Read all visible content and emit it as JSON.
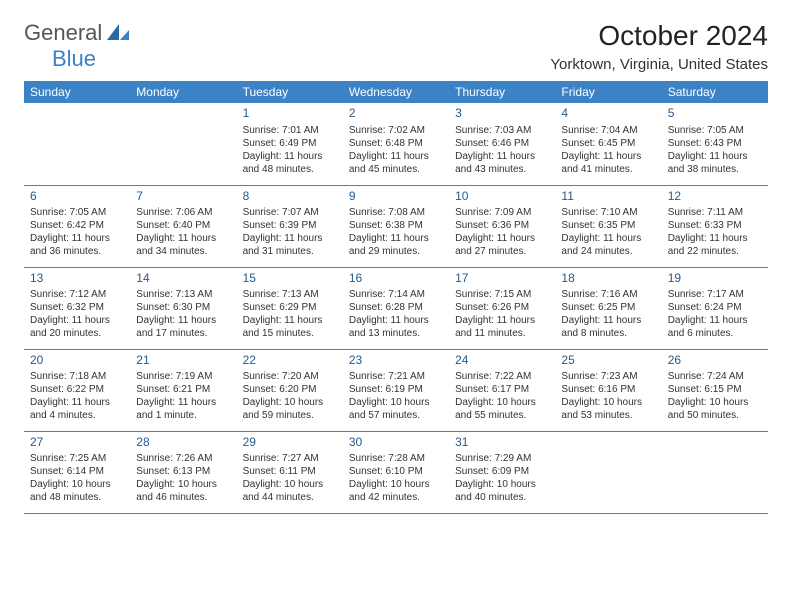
{
  "logo": {
    "line1": "General",
    "line2": "Blue"
  },
  "title": "October 2024",
  "location": "Yorktown, Virginia, United States",
  "colors": {
    "header_bg": "#3b82c7",
    "header_text": "#ffffff",
    "daynum": "#265a8a",
    "border": "#5a7ea3",
    "text": "#333333",
    "background": "#ffffff"
  },
  "typography": {
    "title_fontsize": 28,
    "location_fontsize": 15,
    "header_fontsize": 12,
    "daynum_fontsize": 12,
    "cell_fontsize": 10
  },
  "weekdays": [
    "Sunday",
    "Monday",
    "Tuesday",
    "Wednesday",
    "Thursday",
    "Friday",
    "Saturday"
  ],
  "weeks": [
    [
      null,
      null,
      {
        "n": "1",
        "sr": "Sunrise: 7:01 AM",
        "ss": "Sunset: 6:49 PM",
        "d1": "Daylight: 11 hours",
        "d2": "and 48 minutes."
      },
      {
        "n": "2",
        "sr": "Sunrise: 7:02 AM",
        "ss": "Sunset: 6:48 PM",
        "d1": "Daylight: 11 hours",
        "d2": "and 45 minutes."
      },
      {
        "n": "3",
        "sr": "Sunrise: 7:03 AM",
        "ss": "Sunset: 6:46 PM",
        "d1": "Daylight: 11 hours",
        "d2": "and 43 minutes."
      },
      {
        "n": "4",
        "sr": "Sunrise: 7:04 AM",
        "ss": "Sunset: 6:45 PM",
        "d1": "Daylight: 11 hours",
        "d2": "and 41 minutes."
      },
      {
        "n": "5",
        "sr": "Sunrise: 7:05 AM",
        "ss": "Sunset: 6:43 PM",
        "d1": "Daylight: 11 hours",
        "d2": "and 38 minutes."
      }
    ],
    [
      {
        "n": "6",
        "sr": "Sunrise: 7:05 AM",
        "ss": "Sunset: 6:42 PM",
        "d1": "Daylight: 11 hours",
        "d2": "and 36 minutes."
      },
      {
        "n": "7",
        "sr": "Sunrise: 7:06 AM",
        "ss": "Sunset: 6:40 PM",
        "d1": "Daylight: 11 hours",
        "d2": "and 34 minutes."
      },
      {
        "n": "8",
        "sr": "Sunrise: 7:07 AM",
        "ss": "Sunset: 6:39 PM",
        "d1": "Daylight: 11 hours",
        "d2": "and 31 minutes."
      },
      {
        "n": "9",
        "sr": "Sunrise: 7:08 AM",
        "ss": "Sunset: 6:38 PM",
        "d1": "Daylight: 11 hours",
        "d2": "and 29 minutes."
      },
      {
        "n": "10",
        "sr": "Sunrise: 7:09 AM",
        "ss": "Sunset: 6:36 PM",
        "d1": "Daylight: 11 hours",
        "d2": "and 27 minutes."
      },
      {
        "n": "11",
        "sr": "Sunrise: 7:10 AM",
        "ss": "Sunset: 6:35 PM",
        "d1": "Daylight: 11 hours",
        "d2": "and 24 minutes."
      },
      {
        "n": "12",
        "sr": "Sunrise: 7:11 AM",
        "ss": "Sunset: 6:33 PM",
        "d1": "Daylight: 11 hours",
        "d2": "and 22 minutes."
      }
    ],
    [
      {
        "n": "13",
        "sr": "Sunrise: 7:12 AM",
        "ss": "Sunset: 6:32 PM",
        "d1": "Daylight: 11 hours",
        "d2": "and 20 minutes."
      },
      {
        "n": "14",
        "sr": "Sunrise: 7:13 AM",
        "ss": "Sunset: 6:30 PM",
        "d1": "Daylight: 11 hours",
        "d2": "and 17 minutes."
      },
      {
        "n": "15",
        "sr": "Sunrise: 7:13 AM",
        "ss": "Sunset: 6:29 PM",
        "d1": "Daylight: 11 hours",
        "d2": "and 15 minutes."
      },
      {
        "n": "16",
        "sr": "Sunrise: 7:14 AM",
        "ss": "Sunset: 6:28 PM",
        "d1": "Daylight: 11 hours",
        "d2": "and 13 minutes."
      },
      {
        "n": "17",
        "sr": "Sunrise: 7:15 AM",
        "ss": "Sunset: 6:26 PM",
        "d1": "Daylight: 11 hours",
        "d2": "and 11 minutes."
      },
      {
        "n": "18",
        "sr": "Sunrise: 7:16 AM",
        "ss": "Sunset: 6:25 PM",
        "d1": "Daylight: 11 hours",
        "d2": "and 8 minutes."
      },
      {
        "n": "19",
        "sr": "Sunrise: 7:17 AM",
        "ss": "Sunset: 6:24 PM",
        "d1": "Daylight: 11 hours",
        "d2": "and 6 minutes."
      }
    ],
    [
      {
        "n": "20",
        "sr": "Sunrise: 7:18 AM",
        "ss": "Sunset: 6:22 PM",
        "d1": "Daylight: 11 hours",
        "d2": "and 4 minutes."
      },
      {
        "n": "21",
        "sr": "Sunrise: 7:19 AM",
        "ss": "Sunset: 6:21 PM",
        "d1": "Daylight: 11 hours",
        "d2": "and 1 minute."
      },
      {
        "n": "22",
        "sr": "Sunrise: 7:20 AM",
        "ss": "Sunset: 6:20 PM",
        "d1": "Daylight: 10 hours",
        "d2": "and 59 minutes."
      },
      {
        "n": "23",
        "sr": "Sunrise: 7:21 AM",
        "ss": "Sunset: 6:19 PM",
        "d1": "Daylight: 10 hours",
        "d2": "and 57 minutes."
      },
      {
        "n": "24",
        "sr": "Sunrise: 7:22 AM",
        "ss": "Sunset: 6:17 PM",
        "d1": "Daylight: 10 hours",
        "d2": "and 55 minutes."
      },
      {
        "n": "25",
        "sr": "Sunrise: 7:23 AM",
        "ss": "Sunset: 6:16 PM",
        "d1": "Daylight: 10 hours",
        "d2": "and 53 minutes."
      },
      {
        "n": "26",
        "sr": "Sunrise: 7:24 AM",
        "ss": "Sunset: 6:15 PM",
        "d1": "Daylight: 10 hours",
        "d2": "and 50 minutes."
      }
    ],
    [
      {
        "n": "27",
        "sr": "Sunrise: 7:25 AM",
        "ss": "Sunset: 6:14 PM",
        "d1": "Daylight: 10 hours",
        "d2": "and 48 minutes."
      },
      {
        "n": "28",
        "sr": "Sunrise: 7:26 AM",
        "ss": "Sunset: 6:13 PM",
        "d1": "Daylight: 10 hours",
        "d2": "and 46 minutes."
      },
      {
        "n": "29",
        "sr": "Sunrise: 7:27 AM",
        "ss": "Sunset: 6:11 PM",
        "d1": "Daylight: 10 hours",
        "d2": "and 44 minutes."
      },
      {
        "n": "30",
        "sr": "Sunrise: 7:28 AM",
        "ss": "Sunset: 6:10 PM",
        "d1": "Daylight: 10 hours",
        "d2": "and 42 minutes."
      },
      {
        "n": "31",
        "sr": "Sunrise: 7:29 AM",
        "ss": "Sunset: 6:09 PM",
        "d1": "Daylight: 10 hours",
        "d2": "and 40 minutes."
      },
      null,
      null
    ]
  ]
}
